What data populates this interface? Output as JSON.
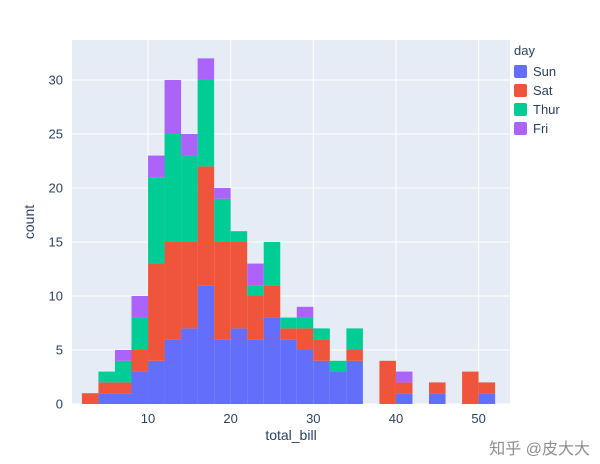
{
  "watermark": {
    "text": "知乎 @皮大大"
  },
  "chart_data": {
    "type": "bar",
    "subtype": "stacked-histogram",
    "title": "",
    "xlabel": "total_bill",
    "ylabel": "count",
    "legend_title": "day",
    "legend_position": "top-right",
    "grid": true,
    "plot_bg": "#E5ECF6",
    "grid_color": "#FFFFFF",
    "text_color": "#2A3F5F",
    "bin_width": 2,
    "bin_starts": [
      2,
      4,
      6,
      8,
      10,
      12,
      14,
      16,
      18,
      20,
      22,
      24,
      26,
      28,
      30,
      32,
      34,
      36,
      38,
      40,
      42,
      44,
      46,
      48,
      50
    ],
    "xlim": [
      0.8,
      53.8
    ],
    "ylim": [
      0,
      33.7
    ],
    "xticks": [
      10,
      20,
      30,
      40,
      50
    ],
    "yticks": [
      0,
      5,
      10,
      15,
      20,
      25,
      30
    ],
    "series": [
      {
        "name": "Sun",
        "color": "#636EFA",
        "values": [
          0,
          1,
          1,
          3,
          4,
          6,
          7,
          11,
          6,
          7,
          6,
          8,
          6,
          5,
          4,
          3,
          4,
          0,
          0,
          1,
          0,
          1,
          0,
          0,
          1
        ]
      },
      {
        "name": "Sat",
        "color": "#EF553B",
        "values": [
          1,
          1,
          1,
          2,
          9,
          9,
          8,
          11,
          9,
          8,
          4,
          3,
          1,
          2,
          2,
          0,
          1,
          0,
          4,
          1,
          0,
          1,
          0,
          3,
          1
        ]
      },
      {
        "name": "Thur",
        "color": "#00CC96",
        "values": [
          0,
          1,
          2,
          3,
          8,
          10,
          8,
          8,
          4,
          1,
          1,
          4,
          1,
          1,
          1,
          1,
          2,
          0,
          0,
          0,
          0,
          0,
          0,
          0,
          0
        ]
      },
      {
        "name": "Fri",
        "color": "#AB63FA",
        "values": [
          0,
          0,
          1,
          2,
          2,
          5,
          2,
          2,
          1,
          0,
          2,
          0,
          0,
          1,
          0,
          0,
          0,
          0,
          0,
          1,
          0,
          0,
          0,
          0,
          0
        ]
      }
    ]
  }
}
